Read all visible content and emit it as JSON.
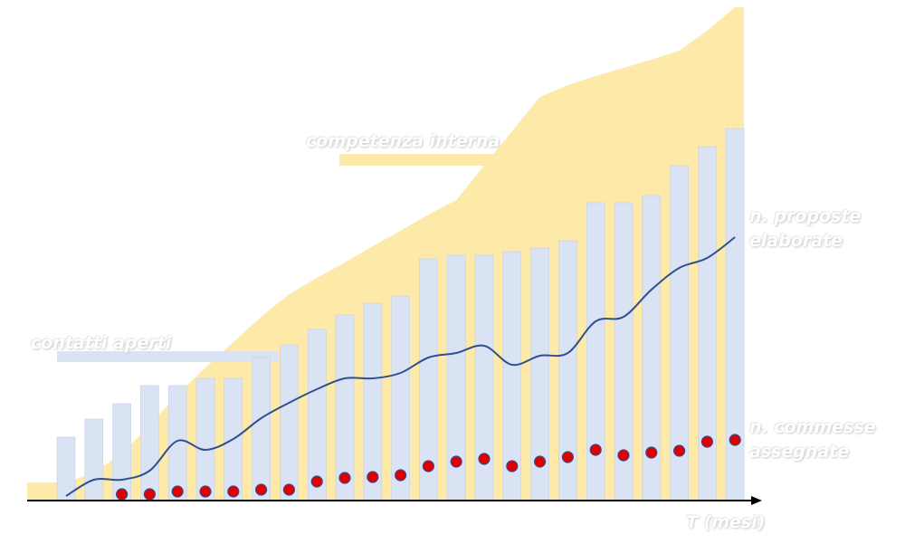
{
  "chart_data": {
    "type": "combo",
    "x_label": "T (mesi)",
    "ylim": [
      0,
      553
    ],
    "series": [
      {
        "name": "competenza interna",
        "type": "area",
        "color": "#fde9a8",
        "values": [
          20,
          31,
          52,
          83,
          117,
          147,
          175,
          203,
          228,
          246,
          263,
          281,
          298,
          316,
          332,
          370,
          408,
          446,
          459,
          469,
          478,
          487,
          497,
          519,
          545
        ]
      },
      {
        "name": "contatti aperti",
        "type": "bar",
        "color": "#dae3f3",
        "values": [
          70,
          90,
          107,
          127,
          127,
          135,
          135,
          158,
          172,
          189,
          205,
          218,
          226,
          267,
          271,
          271,
          275,
          279,
          287,
          329,
          329,
          337,
          370,
          391,
          411
        ]
      },
      {
        "name": "n. proposte elaborate",
        "type": "line",
        "color": "#2f4f8f",
        "values": [
          5,
          23,
          23,
          33,
          66,
          56,
          68,
          91,
          108,
          123,
          135,
          135,
          141,
          158,
          163,
          171,
          150,
          160,
          163,
          198,
          203,
          233,
          257,
          268,
          291
        ]
      },
      {
        "name": "n. commesse assegnate",
        "type": "scatter",
        "color": "#e00000",
        "values": [
          null,
          null,
          7,
          7,
          10,
          10,
          10,
          12,
          12,
          21,
          25,
          26,
          28,
          38,
          43,
          46,
          38,
          43,
          48,
          56,
          50,
          53,
          55,
          65,
          67
        ]
      }
    ]
  }
}
